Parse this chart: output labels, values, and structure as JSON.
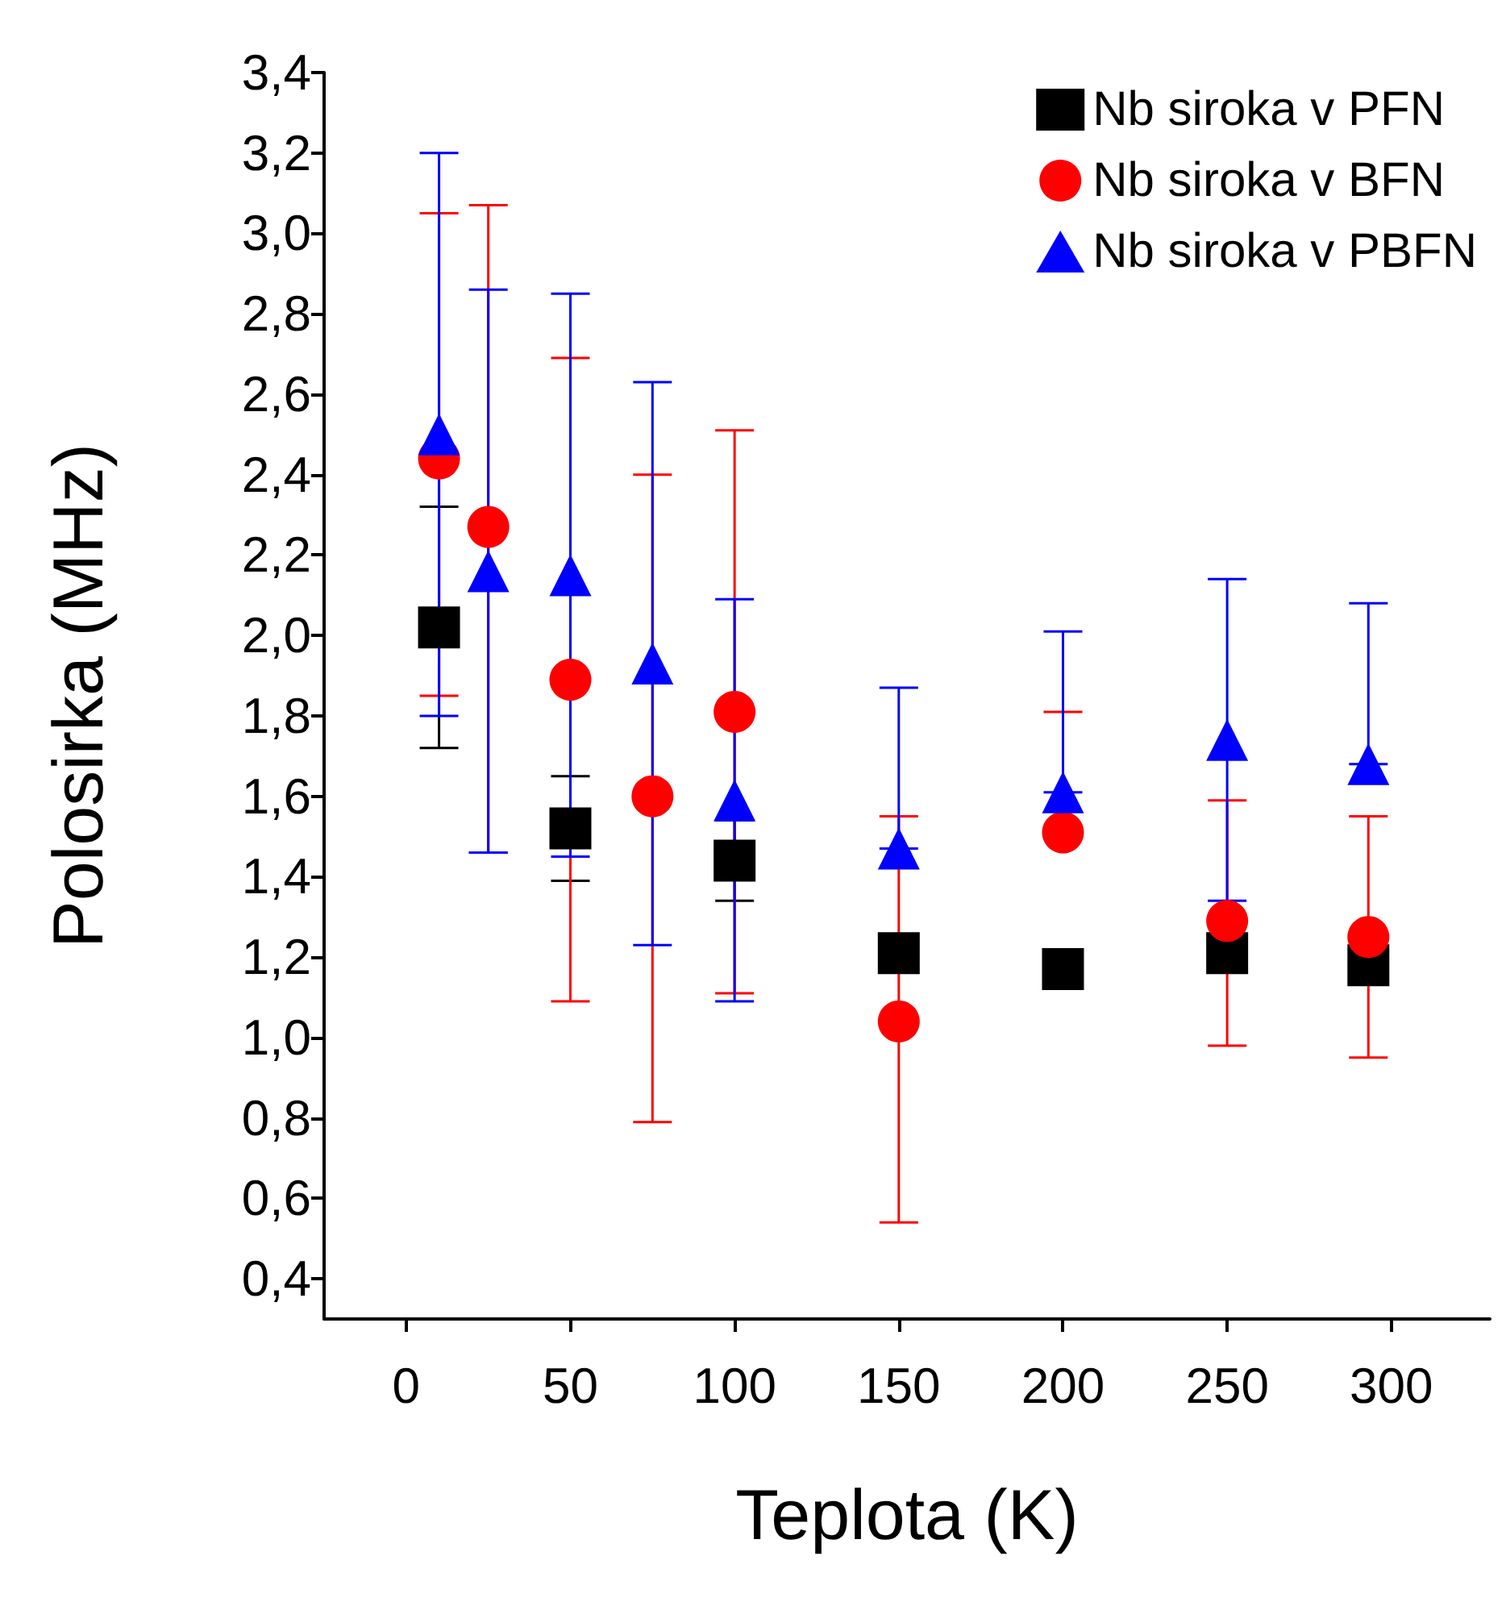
{
  "chart_data": {
    "type": "scatter",
    "xlabel": "Teplota (K)",
    "ylabel": "Polosirka (MHz)",
    "xlim": [
      -25,
      330
    ],
    "xticks": [
      0,
      50,
      100,
      150,
      200,
      250,
      300
    ],
    "ylim": [
      0.3,
      3.4
    ],
    "yticks": [
      {
        "value": 0.4,
        "label": "0,4"
      },
      {
        "value": 0.6,
        "label": "0,6"
      },
      {
        "value": 0.8,
        "label": "0,8"
      },
      {
        "value": 1.0,
        "label": "1,0"
      },
      {
        "value": 1.2,
        "label": "1,2"
      },
      {
        "value": 1.4,
        "label": "1,4"
      },
      {
        "value": 1.6,
        "label": "1,6"
      },
      {
        "value": 1.8,
        "label": "1,8"
      },
      {
        "value": 2.0,
        "label": "2,0"
      },
      {
        "value": 2.2,
        "label": "2,2"
      },
      {
        "value": 2.4,
        "label": "2,4"
      },
      {
        "value": 2.6,
        "label": "2,6"
      },
      {
        "value": 2.8,
        "label": "2,8"
      },
      {
        "value": 3.0,
        "label": "3,0"
      },
      {
        "value": 3.2,
        "label": "3,2"
      },
      {
        "value": 3.4,
        "label": "3,4"
      }
    ],
    "grid": false,
    "legend": "top right",
    "series": [
      {
        "name": "Nb siroka v PFN",
        "color": "#000000",
        "marker": "square",
        "x": [
          10,
          50,
          100,
          150,
          200,
          250,
          293
        ],
        "values": [
          2.02,
          1.52,
          1.44,
          1.21,
          1.17,
          1.21,
          1.18
        ],
        "errors": [
          [
            1.72,
            2.32
          ],
          [
            1.39,
            1.65
          ],
          [
            1.34,
            1.54
          ],
          null,
          null,
          null,
          null
        ]
      },
      {
        "name": "Nb siroka v BFN",
        "color": "#ff0000",
        "marker": "circle",
        "x": [
          10,
          25,
          50,
          75,
          100,
          150,
          200,
          250,
          293
        ],
        "values": [
          2.44,
          2.27,
          1.89,
          1.6,
          1.81,
          1.04,
          1.51,
          1.29,
          1.25
        ],
        "errors": [
          [
            1.85,
            3.05
          ],
          [
            1.46,
            3.07
          ],
          [
            1.09,
            2.69
          ],
          [
            0.79,
            2.4
          ],
          [
            1.11,
            2.51
          ],
          [
            0.54,
            1.55
          ],
          [
            1.51,
            1.81
          ],
          [
            0.98,
            1.59
          ],
          [
            0.95,
            1.55
          ]
        ]
      },
      {
        "name": "Nb siroka v PBFN",
        "color": "#0000ff",
        "marker": "triangle",
        "x": [
          10,
          25,
          50,
          75,
          100,
          150,
          200,
          250,
          293
        ],
        "values": [
          2.5,
          2.16,
          2.15,
          1.93,
          1.59,
          1.47,
          1.61,
          1.74,
          1.68
        ],
        "errors": [
          [
            1.8,
            3.2
          ],
          [
            1.46,
            2.86
          ],
          [
            1.45,
            2.85
          ],
          [
            1.23,
            2.63
          ],
          [
            1.09,
            2.09
          ],
          [
            1.47,
            1.87
          ],
          [
            1.61,
            2.01
          ],
          [
            1.34,
            2.14
          ],
          [
            1.68,
            2.08
          ]
        ]
      }
    ]
  }
}
